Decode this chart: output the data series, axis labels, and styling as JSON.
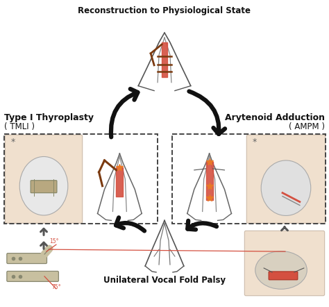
{
  "background_color": "#ffffff",
  "top_label": "Reconstruction to Physiological State",
  "left_label_line1": "Type I Thyroplasty",
  "left_label_line2": "( TMLI )",
  "right_label_line1": "Arytenoid Adduction",
  "right_label_line2": "( AMPM )",
  "bottom_label": "Unilateral Vocal Fold Palsy",
  "beige_color": "#f0e0ce",
  "white_color": "#fafafa",
  "dashed_color": "#444444",
  "arrow_color": "#111111",
  "gray_arrow_color": "#666666",
  "label_color": "#111111",
  "red_color": "#d45040",
  "brown_color": "#7B3A10",
  "implant_color": "#c8b88a"
}
